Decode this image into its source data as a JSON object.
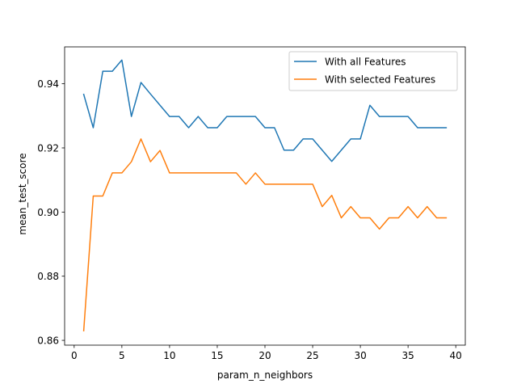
{
  "chart_data": {
    "type": "line",
    "title": "",
    "xlabel": "param_n_neighbors",
    "ylabel": "mean_test_score",
    "xlim": [
      -1,
      41
    ],
    "ylim": [
      0.8585,
      0.9515
    ],
    "xticks": [
      0,
      5,
      10,
      15,
      20,
      25,
      30,
      35,
      40
    ],
    "xtick_labels": [
      "0",
      "5",
      "10",
      "15",
      "20",
      "25",
      "30",
      "35",
      "40"
    ],
    "yticks": [
      0.86,
      0.88,
      0.9,
      0.92,
      0.94
    ],
    "ytick_labels": [
      "0.86",
      "0.88",
      "0.90",
      "0.92",
      "0.94"
    ],
    "grid": false,
    "legend_position": "upper right",
    "x": [
      1,
      2,
      3,
      4,
      5,
      6,
      7,
      8,
      9,
      10,
      11,
      12,
      13,
      14,
      15,
      16,
      17,
      18,
      19,
      20,
      21,
      22,
      23,
      24,
      25,
      26,
      27,
      28,
      29,
      30,
      31,
      32,
      33,
      34,
      35,
      36,
      37,
      38,
      39
    ],
    "series": [
      {
        "name": "With all Features",
        "color": "#1f77b4",
        "values": [
          0.9367,
          0.9263,
          0.9439,
          0.9439,
          0.9474,
          0.9298,
          0.9404,
          0.9368,
          0.9333,
          0.9298,
          0.9298,
          0.9263,
          0.9298,
          0.9263,
          0.9263,
          0.9298,
          0.9298,
          0.9298,
          0.9298,
          0.9263,
          0.9263,
          0.9193,
          0.9193,
          0.9228,
          0.9228,
          0.9193,
          0.9158,
          0.9193,
          0.9228,
          0.9228,
          0.9333,
          0.9298,
          0.9298,
          0.9298,
          0.9298,
          0.9263,
          0.9263,
          0.9263,
          0.9263
        ]
      },
      {
        "name": "With selected Features",
        "color": "#ff7f0e",
        "values": [
          0.863,
          0.905,
          0.905,
          0.9122,
          0.9122,
          0.9157,
          0.9228,
          0.9157,
          0.9192,
          0.9122,
          0.9122,
          0.9122,
          0.9122,
          0.9122,
          0.9122,
          0.9122,
          0.9122,
          0.9087,
          0.9122,
          0.9087,
          0.9087,
          0.9087,
          0.9087,
          0.9087,
          0.9087,
          0.9017,
          0.9052,
          0.8982,
          0.9017,
          0.8982,
          0.8982,
          0.8947,
          0.8982,
          0.8982,
          0.9017,
          0.8982,
          0.9017,
          0.8982,
          0.8982
        ]
      }
    ]
  }
}
